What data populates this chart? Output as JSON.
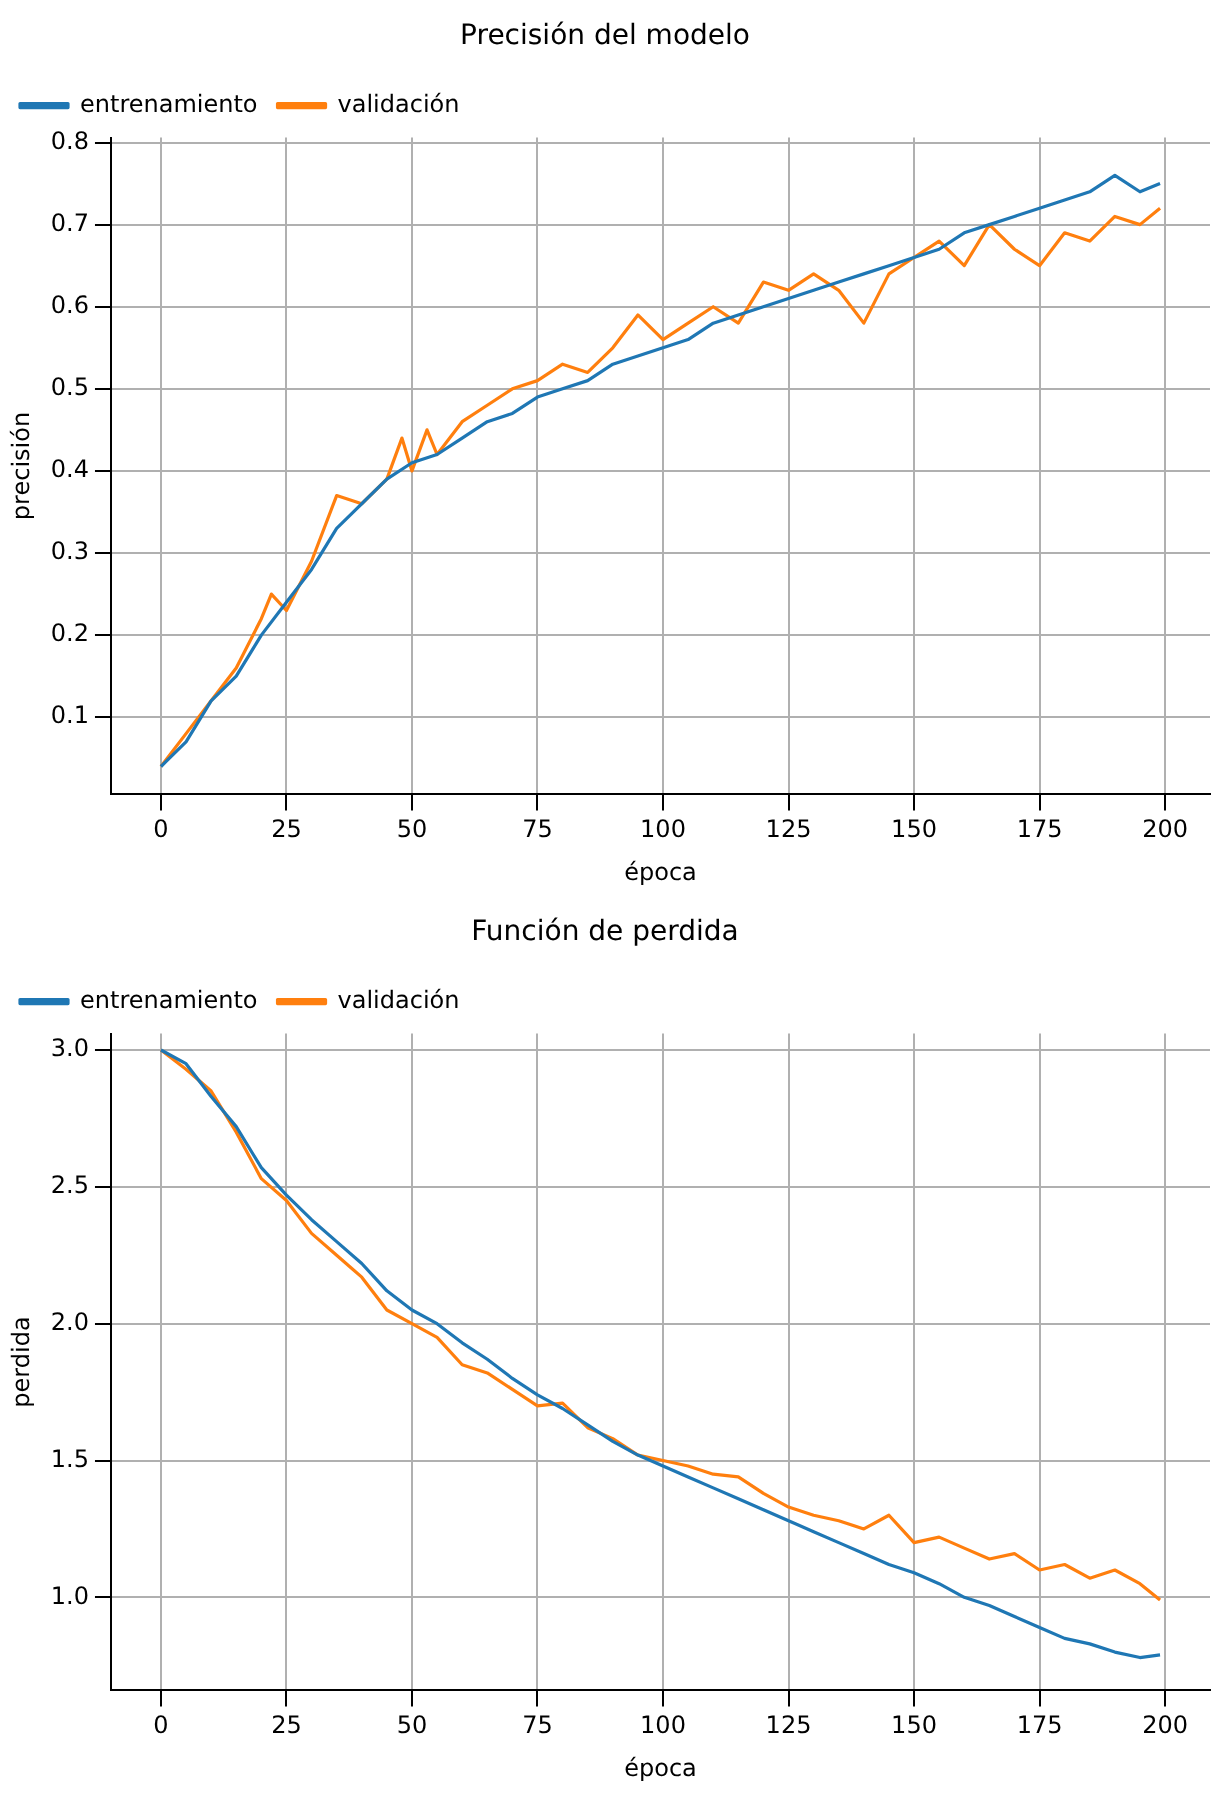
{
  "chart_data": [
    {
      "type": "line",
      "title": "Precisión del modelo",
      "xlabel": "época",
      "ylabel": "precisión",
      "grid": true,
      "legend": "top left",
      "marker": "none",
      "xlim": [
        -9.95,
        208.95
      ],
      "xticks": [
        0,
        25,
        50,
        75,
        100,
        125,
        150,
        175,
        200
      ],
      "ylim": [
        0.006,
        0.806
      ],
      "yticks": [
        0.1,
        0.2,
        0.3,
        0.4,
        0.5,
        0.6,
        0.7,
        0.8
      ],
      "series": [
        {
          "name": "entrenamiento",
          "color": "#1f77b4",
          "x": [
            0,
            5,
            10,
            15,
            20,
            25,
            30,
            35,
            40,
            45,
            50,
            55,
            60,
            65,
            70,
            75,
            80,
            85,
            90,
            95,
            100,
            105,
            110,
            115,
            120,
            125,
            130,
            135,
            140,
            145,
            150,
            155,
            160,
            165,
            170,
            175,
            180,
            185,
            190,
            195,
            199
          ],
          "values": [
            0.04,
            0.07,
            0.12,
            0.15,
            0.2,
            0.24,
            0.28,
            0.33,
            0.36,
            0.39,
            0.41,
            0.42,
            0.44,
            0.46,
            0.47,
            0.49,
            0.5,
            0.51,
            0.53,
            0.54,
            0.55,
            0.56,
            0.58,
            0.59,
            0.6,
            0.61,
            0.62,
            0.63,
            0.64,
            0.65,
            0.66,
            0.67,
            0.69,
            0.7,
            0.71,
            0.72,
            0.73,
            0.74,
            0.76,
            0.74,
            0.75
          ]
        },
        {
          "name": "validación",
          "color": "#ff7f0e",
          "x": [
            0,
            5,
            10,
            15,
            20,
            22,
            25,
            30,
            35,
            40,
            45,
            48,
            50,
            53,
            55,
            60,
            65,
            70,
            75,
            80,
            85,
            90,
            95,
            100,
            105,
            110,
            115,
            120,
            125,
            130,
            135,
            140,
            145,
            150,
            155,
            160,
            165,
            170,
            175,
            180,
            185,
            190,
            195,
            199
          ],
          "values": [
            0.04,
            0.08,
            0.12,
            0.16,
            0.22,
            0.25,
            0.23,
            0.29,
            0.37,
            0.36,
            0.39,
            0.44,
            0.4,
            0.45,
            0.42,
            0.46,
            0.48,
            0.5,
            0.51,
            0.53,
            0.52,
            0.55,
            0.59,
            0.56,
            0.58,
            0.6,
            0.58,
            0.63,
            0.62,
            0.64,
            0.62,
            0.58,
            0.64,
            0.66,
            0.68,
            0.65,
            0.7,
            0.67,
            0.65,
            0.69,
            0.68,
            0.71,
            0.7,
            0.72
          ]
        }
      ]
    },
    {
      "type": "line",
      "title": "Función de perdida",
      "xlabel": "época",
      "ylabel": "perdida",
      "grid": true,
      "legend": "top left",
      "marker": "none",
      "xlim": [
        -9.95,
        208.95
      ],
      "xticks": [
        0,
        25,
        50,
        75,
        100,
        125,
        150,
        175,
        200
      ],
      "ylim": [
        0.66,
        3.06
      ],
      "yticks": [
        {
          "value": 1,
          "label": "1.0"
        },
        1.5,
        {
          "value": 2,
          "label": "2.0"
        },
        2.5,
        {
          "value": 3,
          "label": "3.0"
        }
      ],
      "series": [
        {
          "name": "entrenamiento",
          "color": "#1f77b4",
          "x": [
            0,
            5,
            10,
            15,
            20,
            25,
            30,
            35,
            40,
            45,
            50,
            55,
            60,
            65,
            70,
            75,
            80,
            85,
            90,
            95,
            100,
            105,
            110,
            115,
            120,
            125,
            130,
            135,
            140,
            145,
            150,
            155,
            160,
            165,
            170,
            175,
            180,
            185,
            190,
            195,
            199
          ],
          "values": [
            3.0,
            2.95,
            2.83,
            2.72,
            2.57,
            2.47,
            2.38,
            2.3,
            2.22,
            2.12,
            2.05,
            2.0,
            1.93,
            1.87,
            1.8,
            1.74,
            1.69,
            1.63,
            1.57,
            1.52,
            1.48,
            1.44,
            1.4,
            1.36,
            1.32,
            1.28,
            1.24,
            1.2,
            1.16,
            1.12,
            1.09,
            1.05,
            1.0,
            0.97,
            0.93,
            0.89,
            0.85,
            0.83,
            0.8,
            0.78,
            0.79
          ]
        },
        {
          "name": "validación",
          "color": "#ff7f0e",
          "x": [
            0,
            5,
            10,
            15,
            20,
            25,
            30,
            35,
            40,
            45,
            50,
            55,
            60,
            65,
            70,
            75,
            80,
            85,
            90,
            95,
            100,
            105,
            110,
            115,
            120,
            125,
            130,
            135,
            140,
            145,
            150,
            155,
            160,
            165,
            170,
            175,
            180,
            185,
            190,
            195,
            199
          ],
          "values": [
            3.0,
            2.93,
            2.85,
            2.7,
            2.53,
            2.45,
            2.33,
            2.25,
            2.17,
            2.05,
            2.0,
            1.95,
            1.85,
            1.82,
            1.76,
            1.7,
            1.71,
            1.62,
            1.58,
            1.52,
            1.5,
            1.48,
            1.45,
            1.44,
            1.38,
            1.33,
            1.3,
            1.28,
            1.25,
            1.3,
            1.2,
            1.22,
            1.18,
            1.14,
            1.16,
            1.1,
            1.12,
            1.07,
            1.1,
            1.05,
            0.99
          ]
        }
      ]
    }
  ]
}
